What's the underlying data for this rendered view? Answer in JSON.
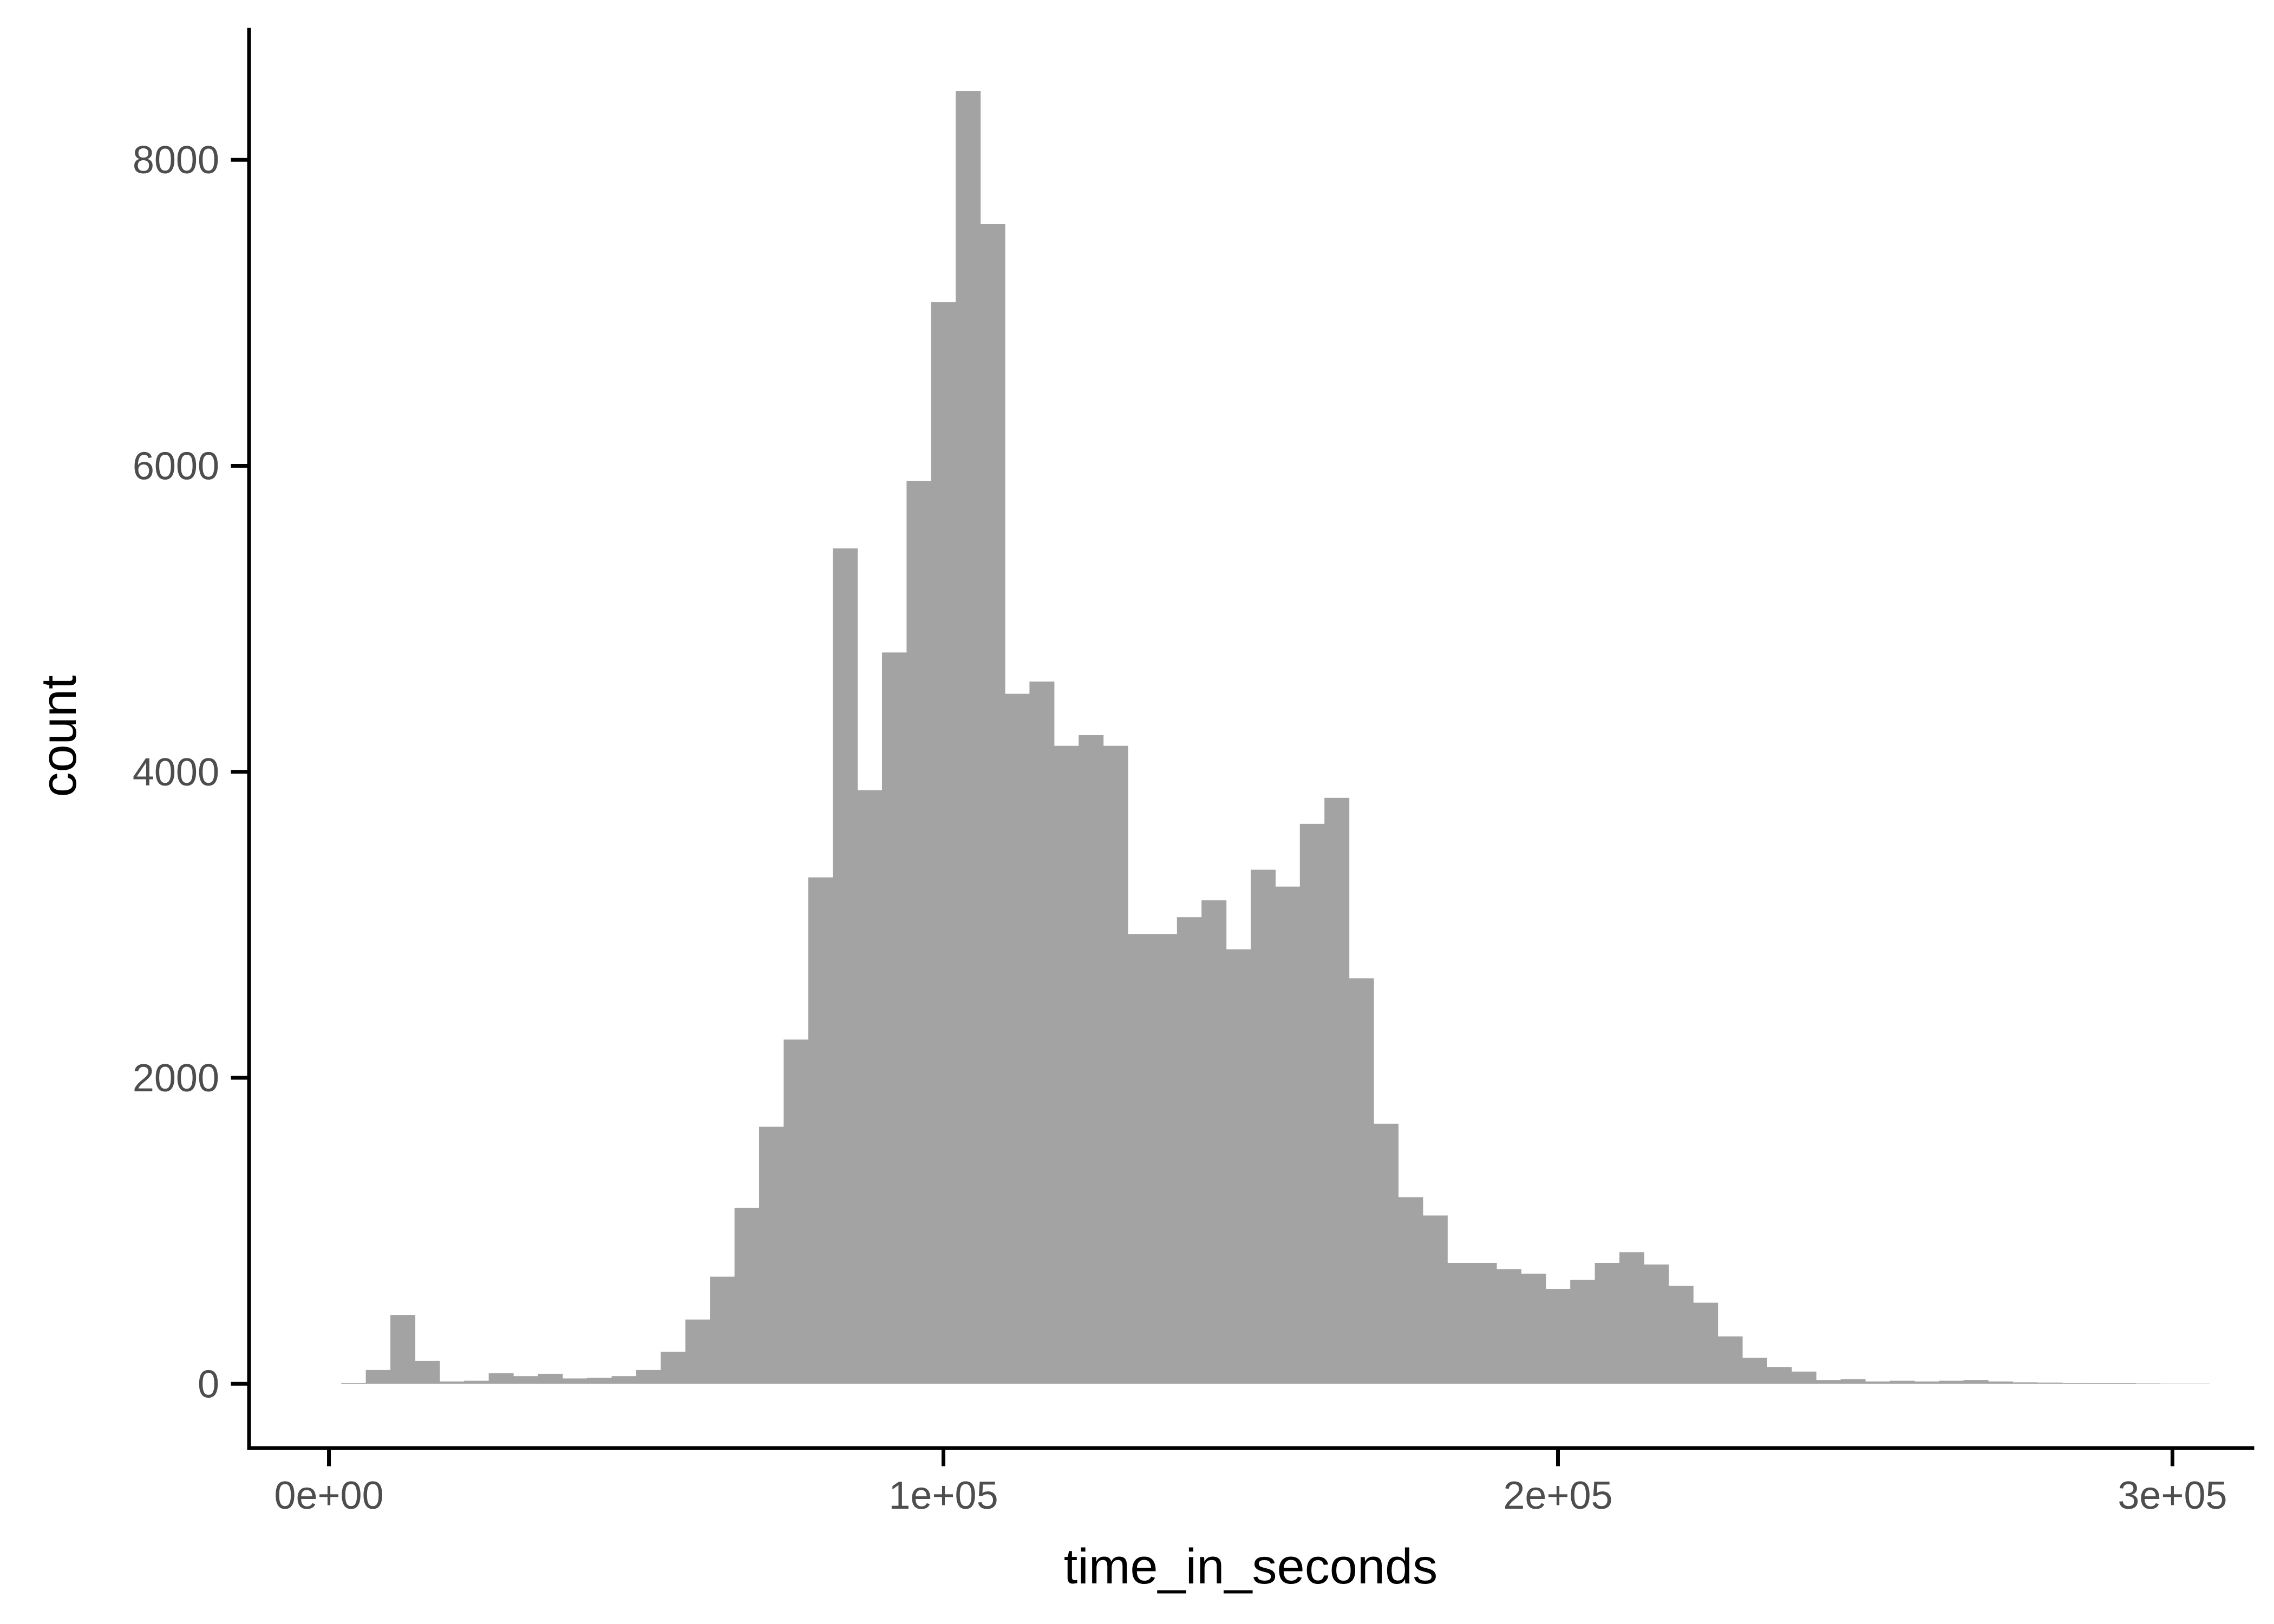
{
  "chart_data": {
    "type": "bar",
    "subtype": "histogram",
    "title": "",
    "xlabel": "time_in_seconds",
    "ylabel": "count",
    "xlim": [
      -13000,
      313000
    ],
    "ylim": [
      -420,
      8850
    ],
    "x_ticks": [
      {
        "value": 0,
        "label": "0e+00"
      },
      {
        "value": 100000,
        "label": "1e+05"
      },
      {
        "value": 200000,
        "label": "2e+05"
      },
      {
        "value": 300000,
        "label": "3e+05"
      }
    ],
    "y_ticks": [
      {
        "value": 0,
        "label": "0"
      },
      {
        "value": 2000,
        "label": "2000"
      },
      {
        "value": 4000,
        "label": "4000"
      },
      {
        "value": 6000,
        "label": "6000"
      },
      {
        "value": 8000,
        "label": "8000"
      }
    ],
    "bin_start": 2000,
    "bin_width": 4000,
    "counts": [
      5,
      90,
      450,
      150,
      15,
      20,
      70,
      50,
      65,
      35,
      40,
      50,
      90,
      210,
      420,
      700,
      1150,
      1680,
      2250,
      3310,
      5460,
      3880,
      4780,
      5900,
      7070,
      8450,
      7580,
      4510,
      4590,
      4170,
      4240,
      4170,
      2940,
      2940,
      3050,
      3160,
      2840,
      3360,
      3250,
      3660,
      3830,
      2650,
      1700,
      1220,
      1100,
      790,
      790,
      750,
      720,
      620,
      680,
      790,
      860,
      780,
      640,
      530,
      310,
      170,
      110,
      80,
      25,
      30,
      15,
      20,
      15,
      20,
      25,
      15,
      10,
      8,
      5,
      5,
      5,
      3,
      2,
      2
    ],
    "grid": false,
    "legend": "none",
    "fill_color": "#a3a3a3",
    "axis_color": "#000000"
  }
}
